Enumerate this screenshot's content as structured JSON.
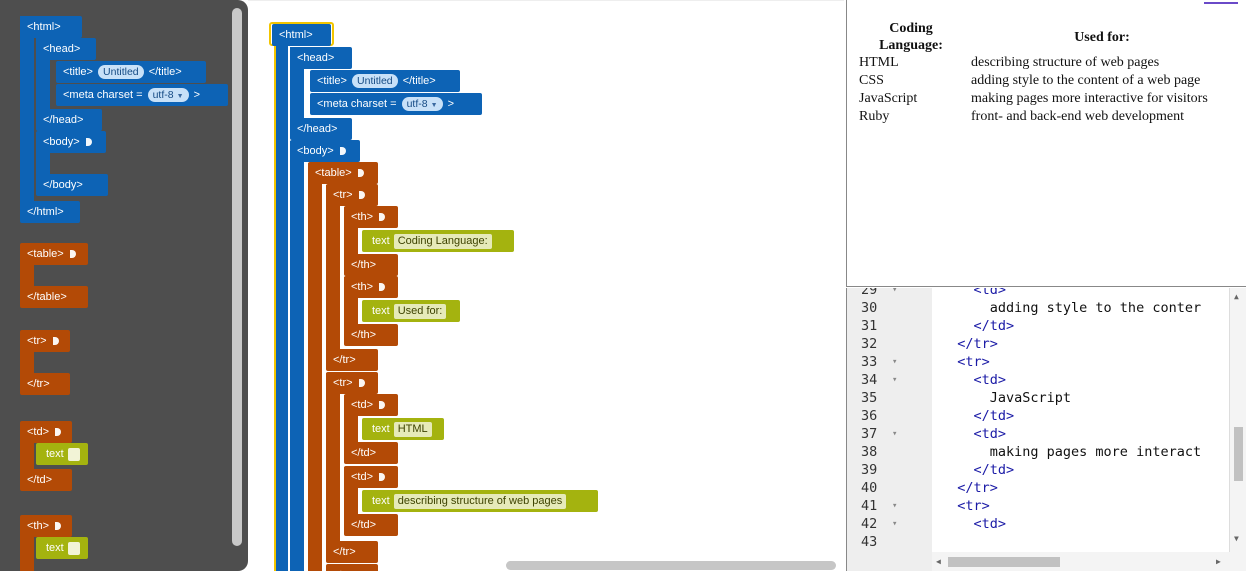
{
  "toolbox": {
    "html_open": "<html>",
    "head_open": "<head>",
    "title_open": "<title>",
    "title_value": "Untitled",
    "title_close": "</title>",
    "meta_label": "<meta charset =",
    "meta_value": "utf-8",
    "meta_close": ">",
    "head_close": "</head>",
    "body_open": "<body>",
    "body_close": "</body>",
    "html_close": "</html>",
    "table_open": "<table>",
    "table_close": "</table>",
    "tr_open": "<tr>",
    "tr_close": "</tr>",
    "td_open": "<td>",
    "td_text": "text",
    "td_close": "</td>",
    "th_open": "<th>",
    "th_text": "text"
  },
  "workspace": {
    "html_open": "<html>",
    "head_open": "<head>",
    "title_open": "<title>",
    "title_value": "Untitled",
    "title_close": "</title>",
    "meta_label": "<meta charset =",
    "meta_value": "utf-8",
    "meta_close": ">",
    "head_close": "</head>",
    "body_open": "<body>",
    "table_open": "<table>",
    "tr_open": "<tr>",
    "tr_close": "</tr>",
    "th_open": "<th>",
    "th_close": "</th>",
    "td_open": "<td>",
    "td_close": "</td>",
    "text_keyword": "text",
    "th1_text": "Coding Language:",
    "th2_text": "Used for:",
    "td1_text": "HTML",
    "td2_text": "describing structure of web pages"
  },
  "preview": {
    "headers": [
      "Coding Language:",
      "Used for:"
    ],
    "rows": [
      [
        "HTML",
        "describing structure of web pages"
      ],
      [
        "CSS",
        "adding style to the content of a web page"
      ],
      [
        "JavaScript",
        "making pages more interactive for visitors"
      ],
      [
        "Ruby",
        "front- and back-end web development"
      ]
    ]
  },
  "editor": {
    "lines": [
      {
        "num": "29",
        "fold": "▾",
        "code": "    <td>"
      },
      {
        "num": "30",
        "fold": "",
        "code": "      adding style to the conter"
      },
      {
        "num": "31",
        "fold": "",
        "code": "    </td>"
      },
      {
        "num": "32",
        "fold": "",
        "code": "  </tr>"
      },
      {
        "num": "33",
        "fold": "▾",
        "code": "  <tr>"
      },
      {
        "num": "34",
        "fold": "▾",
        "code": "    <td>"
      },
      {
        "num": "35",
        "fold": "",
        "code": "      JavaScript"
      },
      {
        "num": "36",
        "fold": "",
        "code": "    </td>"
      },
      {
        "num": "37",
        "fold": "▾",
        "code": "    <td>"
      },
      {
        "num": "38",
        "fold": "",
        "code": "      making pages more interact"
      },
      {
        "num": "39",
        "fold": "",
        "code": "    </td>"
      },
      {
        "num": "40",
        "fold": "",
        "code": "  </tr>"
      },
      {
        "num": "41",
        "fold": "▾",
        "code": "  <tr>"
      },
      {
        "num": "42",
        "fold": "▾",
        "code": "    <td>"
      },
      {
        "num": "43",
        "fold": "",
        "code": ""
      }
    ]
  },
  "colors": {
    "html_block": "#0d63b5",
    "table_block": "#b34a06",
    "text_block": "#a4b30f",
    "toolbox_bg": "#4e4e4e",
    "selection_outline": "#f2c500"
  }
}
